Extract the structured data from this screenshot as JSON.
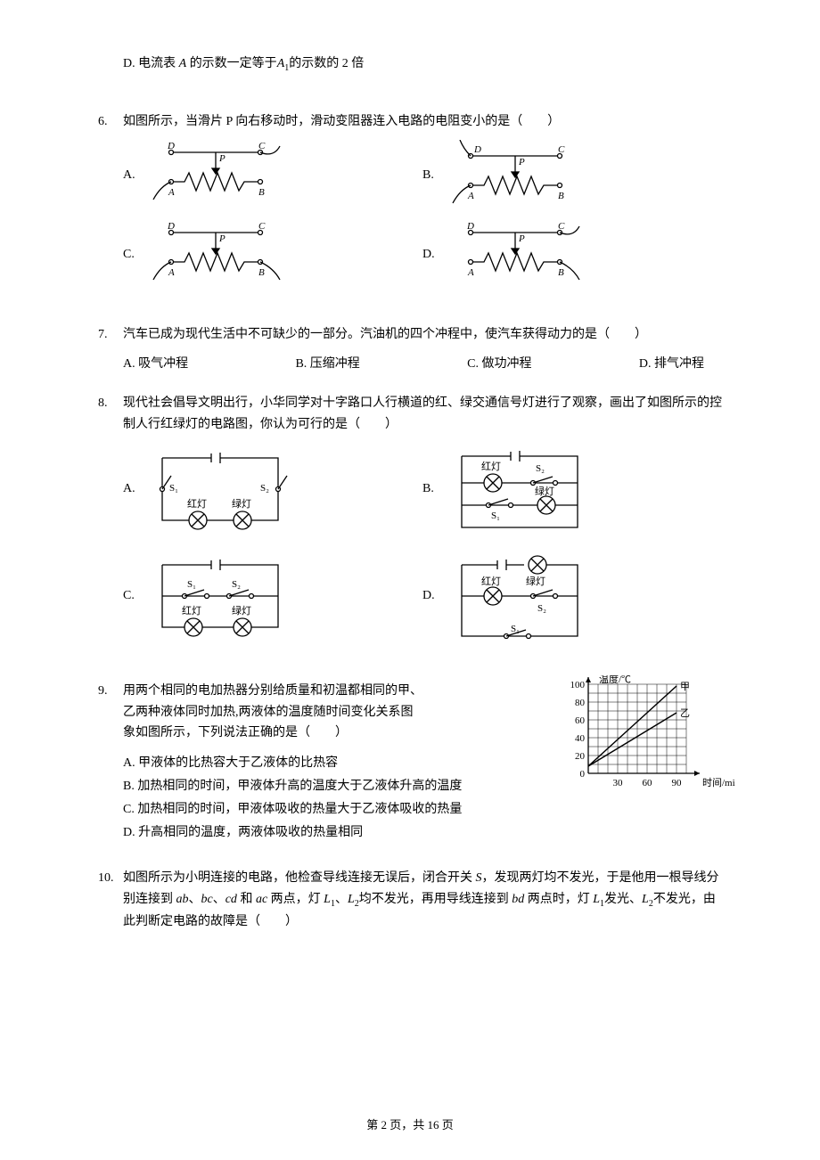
{
  "q5d": {
    "text_prefix": "D. 电流表 ",
    "text_mid1": " 的示数一定等于",
    "text_mid2": "的示数的 2 倍"
  },
  "q6": {
    "num": "6.",
    "stem": "如图所示，当滑片 P 向右移动时，滑动变阻器连入电路的电阻变小的是（　　）",
    "options": [
      "A.",
      "B.",
      "C.",
      "D."
    ],
    "labels": {
      "D": "D",
      "C": "C",
      "P": "P",
      "A": "A",
      "B": "B"
    },
    "style": {
      "stroke": "#000000",
      "stroke_width": 1.3,
      "font_size": 11
    }
  },
  "q7": {
    "num": "7.",
    "stem": "汽车已成为现代生活中不可缺少的一部分。汽油机的四个冲程中，使汽车获得动力的是（　　）",
    "options": {
      "A": "A. 吸气冲程",
      "B": "B. 压缩冲程",
      "C": "C. 做功冲程",
      "D": "D. 排气冲程"
    }
  },
  "q8": {
    "num": "8.",
    "stem": "现代社会倡导文明出行，小华同学对十字路口人行横道的红、绿交通信号灯进行了观察，画出了如图所示的控制人行红绿灯的电路图，你认为可行的是（　　）",
    "options": [
      "A.",
      "B.",
      "C.",
      "D."
    ],
    "labels": {
      "red": "红灯",
      "green": "绿灯",
      "s1": "S₁",
      "s2": "S₂"
    },
    "style": {
      "stroke": "#000000",
      "stroke_width": 1.3,
      "font_size": 11
    }
  },
  "q9": {
    "num": "9.",
    "stem_l1": "用两个相同的电加热器分别给质量和初温都相同的甲、",
    "stem_l2": "乙两种液体同时加热,两液体的温度随时间变化关系图",
    "stem_l3": "象如图所示，下列说法正确的是（　　）",
    "options": {
      "A": "A. 甲液体的比热容大于乙液体的比热容",
      "B": "B. 加热相同的时间，甲液体升高的温度大于乙液体升高的温度",
      "C": "C. 加热相同的时间，甲液体吸收的热量大于乙液体吸收的热量",
      "D": "D. 升高相同的温度，两液体吸收的热量相同"
    },
    "chart": {
      "type": "line",
      "xlabel": "时间/min",
      "ylabel": "温度/℃",
      "xlim": [
        0,
        100
      ],
      "ylim": [
        0,
        100
      ],
      "xticks": [
        0,
        30,
        60,
        90
      ],
      "yticks": [
        0,
        20,
        40,
        60,
        80,
        100
      ],
      "x_grid_step": 10,
      "y_grid_step": 10,
      "series": [
        {
          "name": "甲",
          "points": [
            [
              0,
              8
            ],
            [
              90,
              98
            ]
          ],
          "stroke": "#000000"
        },
        {
          "name": "乙",
          "points": [
            [
              0,
              8
            ],
            [
              90,
              68
            ]
          ],
          "stroke": "#000000"
        }
      ],
      "background": "#ffffff",
      "grid_color": "#000000",
      "axis_color": "#000000",
      "stroke_width": 1,
      "title_fontsize": 11,
      "label_fontsize": 11
    }
  },
  "q10": {
    "num": "10.",
    "stem": "如图所示为小明连接的电路，他检查导线连接无误后，闭合开关 S，发现两灯均不发光，于是他用一根导线分别连接到 ab、bc、cd 和 ac 两点，灯 L₁、L₂均不发光，再用导线连接到 bd 两点时，灯 L₁发光、L₂不发光，由此判断定电路的故障是（　　）"
  },
  "footer": {
    "text": "第 2 页，共 16 页"
  },
  "colors": {
    "text": "#000000",
    "bg": "#ffffff"
  }
}
